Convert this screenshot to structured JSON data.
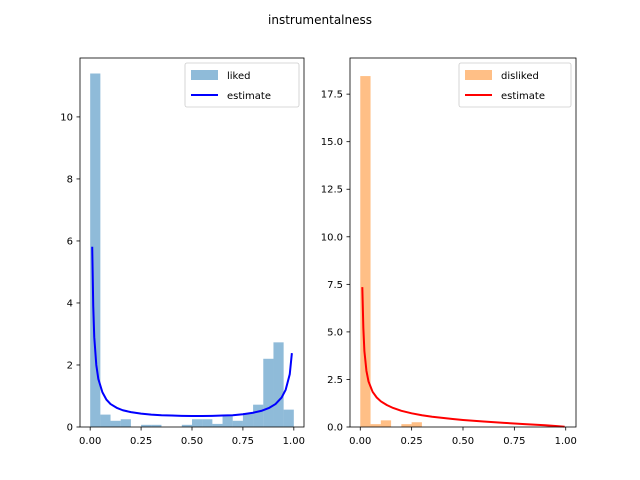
{
  "title": "instrumentalness",
  "chart_data": [
    {
      "type": "histogram",
      "xlim": [
        -0.05,
        1.05
      ],
      "ylim": [
        0,
        11.9
      ],
      "xticks": [
        0.0,
        0.25,
        0.5,
        0.75,
        1.0
      ],
      "xtick_labels": [
        "0.00",
        "0.25",
        "0.50",
        "0.75",
        "1.00"
      ],
      "yticks": [
        0,
        2,
        4,
        6,
        8,
        10
      ],
      "ytick_labels": [
        "0",
        "2",
        "4",
        "6",
        "8",
        "10"
      ],
      "bin_edges": [
        0.0,
        0.05,
        0.1,
        0.15,
        0.2,
        0.25,
        0.3,
        0.35,
        0.4,
        0.45,
        0.5,
        0.55,
        0.6,
        0.65,
        0.7,
        0.75,
        0.8,
        0.85,
        0.9,
        0.95,
        1.0
      ],
      "hist_series": {
        "name": "liked",
        "color": "#1f77b4",
        "alpha": 0.5,
        "values": [
          11.4,
          0.4,
          0.2,
          0.25,
          0.0,
          0.07,
          0.07,
          0.0,
          0.0,
          0.07,
          0.25,
          0.25,
          0.1,
          0.35,
          0.2,
          0.45,
          0.72,
          2.2,
          2.73,
          0.56
        ]
      },
      "line_series": {
        "name": "estimate",
        "color": "#0000ff",
        "x": [
          0.01,
          0.015,
          0.02,
          0.03,
          0.04,
          0.06,
          0.08,
          0.1,
          0.13,
          0.16,
          0.2,
          0.25,
          0.3,
          0.35,
          0.4,
          0.45,
          0.5,
          0.55,
          0.6,
          0.65,
          0.7,
          0.75,
          0.8,
          0.84,
          0.88,
          0.91,
          0.94,
          0.96,
          0.98,
          0.99
        ],
        "y": [
          5.78,
          3.9,
          2.9,
          2.0,
          1.55,
          1.12,
          0.88,
          0.74,
          0.62,
          0.54,
          0.48,
          0.43,
          0.4,
          0.38,
          0.37,
          0.36,
          0.355,
          0.355,
          0.36,
          0.37,
          0.38,
          0.41,
          0.46,
          0.52,
          0.62,
          0.74,
          0.95,
          1.2,
          1.7,
          2.35
        ]
      },
      "legend": {
        "position": "top-right",
        "entries": [
          "liked",
          "estimate"
        ]
      }
    },
    {
      "type": "histogram",
      "xlim": [
        -0.05,
        1.05
      ],
      "ylim": [
        0,
        19.4
      ],
      "xticks": [
        0.0,
        0.25,
        0.5,
        0.75,
        1.0
      ],
      "xtick_labels": [
        "0.00",
        "0.25",
        "0.50",
        "0.75",
        "1.00"
      ],
      "yticks": [
        0,
        2.5,
        5,
        7.5,
        10,
        12.5,
        15,
        17.5
      ],
      "ytick_labels": [
        "0.0",
        "2.5",
        "5.0",
        "7.5",
        "10.0",
        "12.5",
        "15.0",
        "17.5"
      ],
      "bin_edges": [
        0.0,
        0.05,
        0.1,
        0.15,
        0.2,
        0.25,
        0.3,
        0.35,
        0.4,
        0.45,
        0.5,
        0.55,
        0.6,
        0.65,
        0.7,
        0.75,
        0.8,
        0.85,
        0.9,
        0.95,
        1.0
      ],
      "hist_series": {
        "name": "disliked",
        "color": "#ff7f0e",
        "alpha": 0.5,
        "values": [
          18.45,
          0.15,
          0.35,
          0.0,
          0.15,
          0.25,
          0.0,
          0.0,
          0.0,
          0.0,
          0.0,
          0.0,
          0.0,
          0.0,
          0.0,
          0.0,
          0.0,
          0.0,
          0.0,
          0.0
        ]
      },
      "line_series": {
        "name": "estimate",
        "color": "#ff0000",
        "x": [
          0.01,
          0.015,
          0.02,
          0.03,
          0.04,
          0.06,
          0.08,
          0.1,
          0.13,
          0.16,
          0.2,
          0.25,
          0.3,
          0.35,
          0.4,
          0.45,
          0.5,
          0.6,
          0.7,
          0.8,
          0.9,
          0.95,
          0.99
        ],
        "y": [
          7.3,
          5.2,
          4.0,
          2.95,
          2.4,
          1.85,
          1.55,
          1.35,
          1.15,
          1.0,
          0.85,
          0.72,
          0.62,
          0.54,
          0.48,
          0.42,
          0.37,
          0.29,
          0.22,
          0.15,
          0.09,
          0.05,
          0.02
        ]
      },
      "legend": {
        "position": "top-right",
        "entries": [
          "disliked",
          "estimate"
        ]
      }
    }
  ]
}
